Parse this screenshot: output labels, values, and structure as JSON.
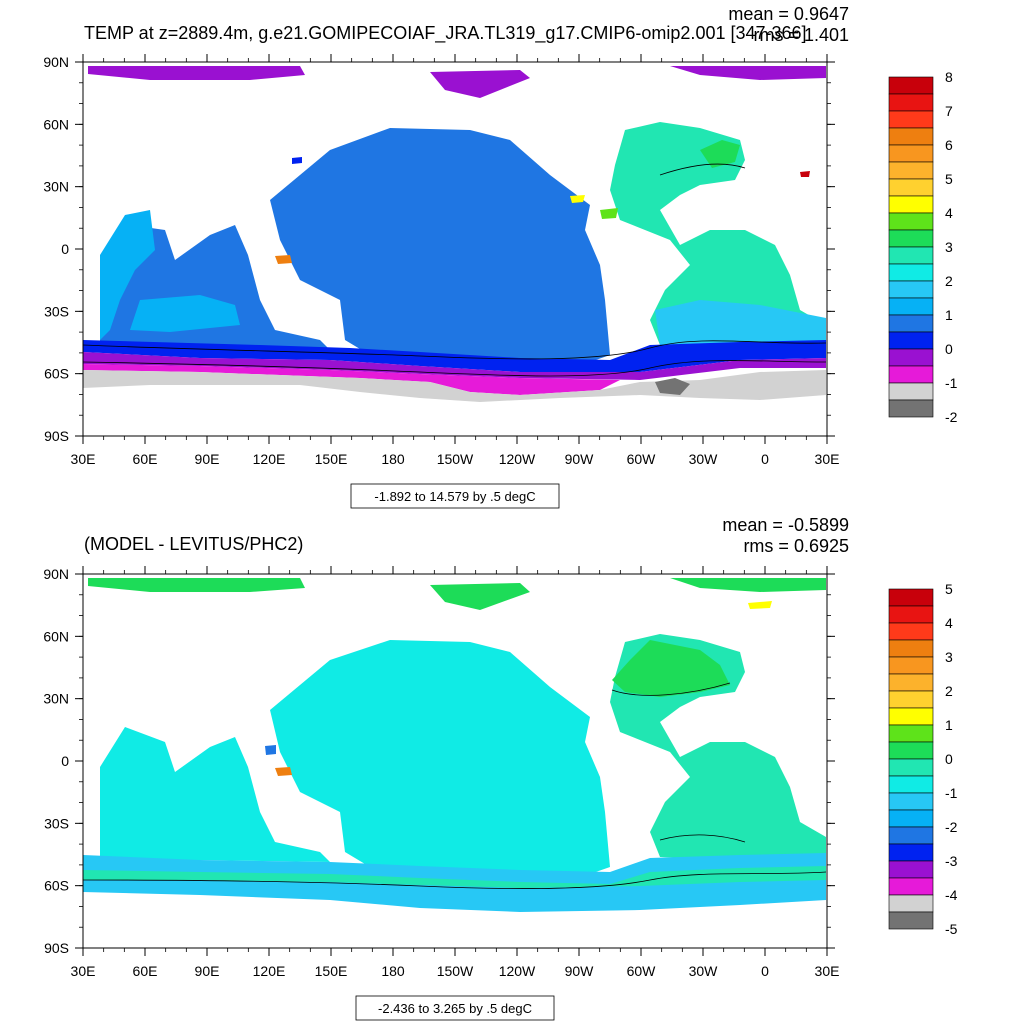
{
  "panels": [
    {
      "id": "top",
      "title": "TEMP at z=2889.4m, g.e21.GOMIPECOIAF_JRA.TL319_g17.CMIP6-omip2.001 [347-366]",
      "mean_label": "mean = 0.9647",
      "rms_label": "rms = 1.401",
      "info_label": "-1.892 to 14.579 by .5 degC",
      "colorbar_labels": [
        "8",
        "7",
        "6",
        "5",
        "4",
        "3",
        "2",
        "1",
        "0",
        "-1",
        "-2"
      ],
      "colorbar_colors": [
        "#c8000b",
        "#e81412",
        "#ff3a1a",
        "#ee7f10",
        "#f8961f",
        "#fcb22c",
        "#ffd12f",
        "#ffff00",
        "#5ee31a",
        "#1ddc58",
        "#21e6b2",
        "#10ebe5",
        "#27c8f5",
        "#06b1f5",
        "#1f76e3",
        "#0022f0",
        "#9a11d1",
        "#e61ad9",
        "#d2d2d2",
        "#737373"
      ]
    },
    {
      "id": "bottom",
      "title": "(MODEL - LEVITUS/PHC2)",
      "mean_label": "mean = -0.5899",
      "rms_label": "rms = 0.6925",
      "info_label": "-2.436 to 3.265 by .5 degC",
      "colorbar_labels": [
        "5",
        "4",
        "3",
        "2",
        "1",
        "0",
        "-1",
        "-2",
        "-3",
        "-4",
        "-5"
      ],
      "colorbar_colors": [
        "#c8000b",
        "#e81412",
        "#ff3a1a",
        "#ee7f10",
        "#f8961f",
        "#fcb22c",
        "#ffd12f",
        "#ffff00",
        "#5ee31a",
        "#1ddc58",
        "#21e6b2",
        "#10ebe5",
        "#27c8f5",
        "#06b1f5",
        "#1f76e3",
        "#0022f0",
        "#9a11d1",
        "#e61ad9",
        "#d2d2d2",
        "#737373"
      ]
    }
  ],
  "axes": {
    "lat_labels": [
      "90N",
      "60N",
      "30N",
      "0",
      "30S",
      "60S",
      "90S"
    ],
    "lon_labels": [
      "30E",
      "60E",
      "90E",
      "120E",
      "150E",
      "180",
      "150W",
      "120W",
      "90W",
      "60W",
      "30W",
      "0",
      "30E"
    ]
  },
  "map_colors": {
    "top": {
      "ocean_main": "#1f76e3",
      "ocean_atlantic": "#21e6b2",
      "ocean_indian": "#06b1f5",
      "southern_blue": "#0022f0",
      "southern_purple": "#9a11d1",
      "southern_magenta": "#e61ad9",
      "antarctic_gray": "#d2d2d2",
      "dark_gray": "#737373",
      "arctic": "#9a11d1",
      "nordic": "#1ddc58",
      "med": "#ffff00",
      "land": "#ffffff"
    },
    "bottom": {
      "ocean_main": "#10ebe5",
      "ocean_atlantic": "#21e6b2",
      "ocean_indian": "#10ebe5",
      "southern_a": "#27c8f5",
      "southern_b": "#21e6b2",
      "arctic": "#1ddc58",
      "nordic": "#1ddc58",
      "med": "#ffff00",
      "land": "#ffffff"
    }
  }
}
